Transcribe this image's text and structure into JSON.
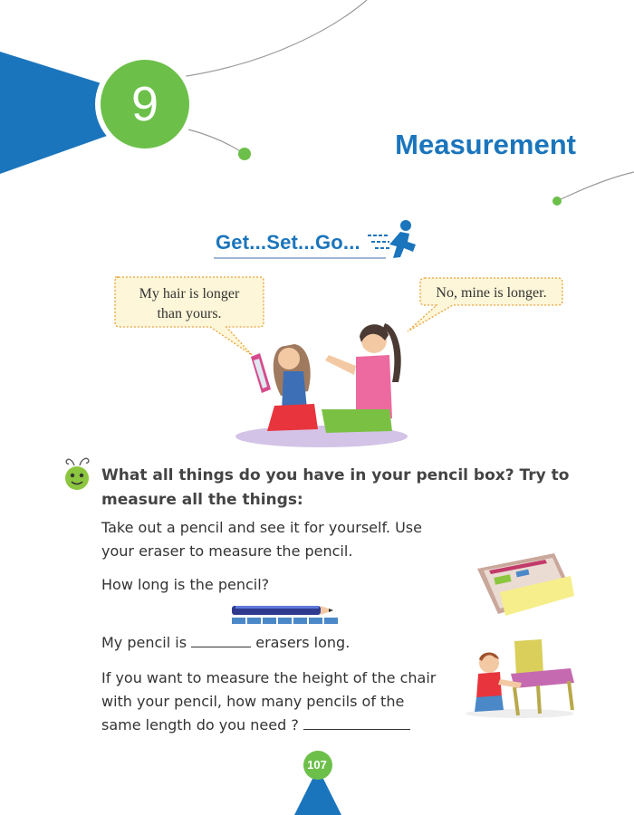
{
  "chapter": {
    "number": "9",
    "title": "Measurement"
  },
  "section": {
    "heading": "Get...Set...Go..."
  },
  "bubbles": {
    "left": {
      "line1": "My hair is longer",
      "line2": "than yours."
    },
    "right": {
      "text": "No, mine is longer."
    }
  },
  "question": {
    "line1": "What all things do you have in your pencil box? Try to",
    "line2": "measure all the things:"
  },
  "paragraphs": {
    "p1_line1": "Take out a pencil and see it for yourself.   Use",
    "p1_line2": "your eraser to measure the pencil.",
    "p2": "How long is the pencil?",
    "p3_before": "My pencil is",
    "p3_after": "erasers long.",
    "p4_line1": "If you want to measure the height of the chair",
    "p4_line2": "with your pencil, how many pencils of the",
    "p4_line3": "same length do you need ?"
  },
  "page_number": "107",
  "colors": {
    "brand_blue": "#1b75bc",
    "brand_green": "#6cc04a",
    "bubble_fill": "#fdf6d8",
    "bubble_border": "#e9a13a"
  }
}
